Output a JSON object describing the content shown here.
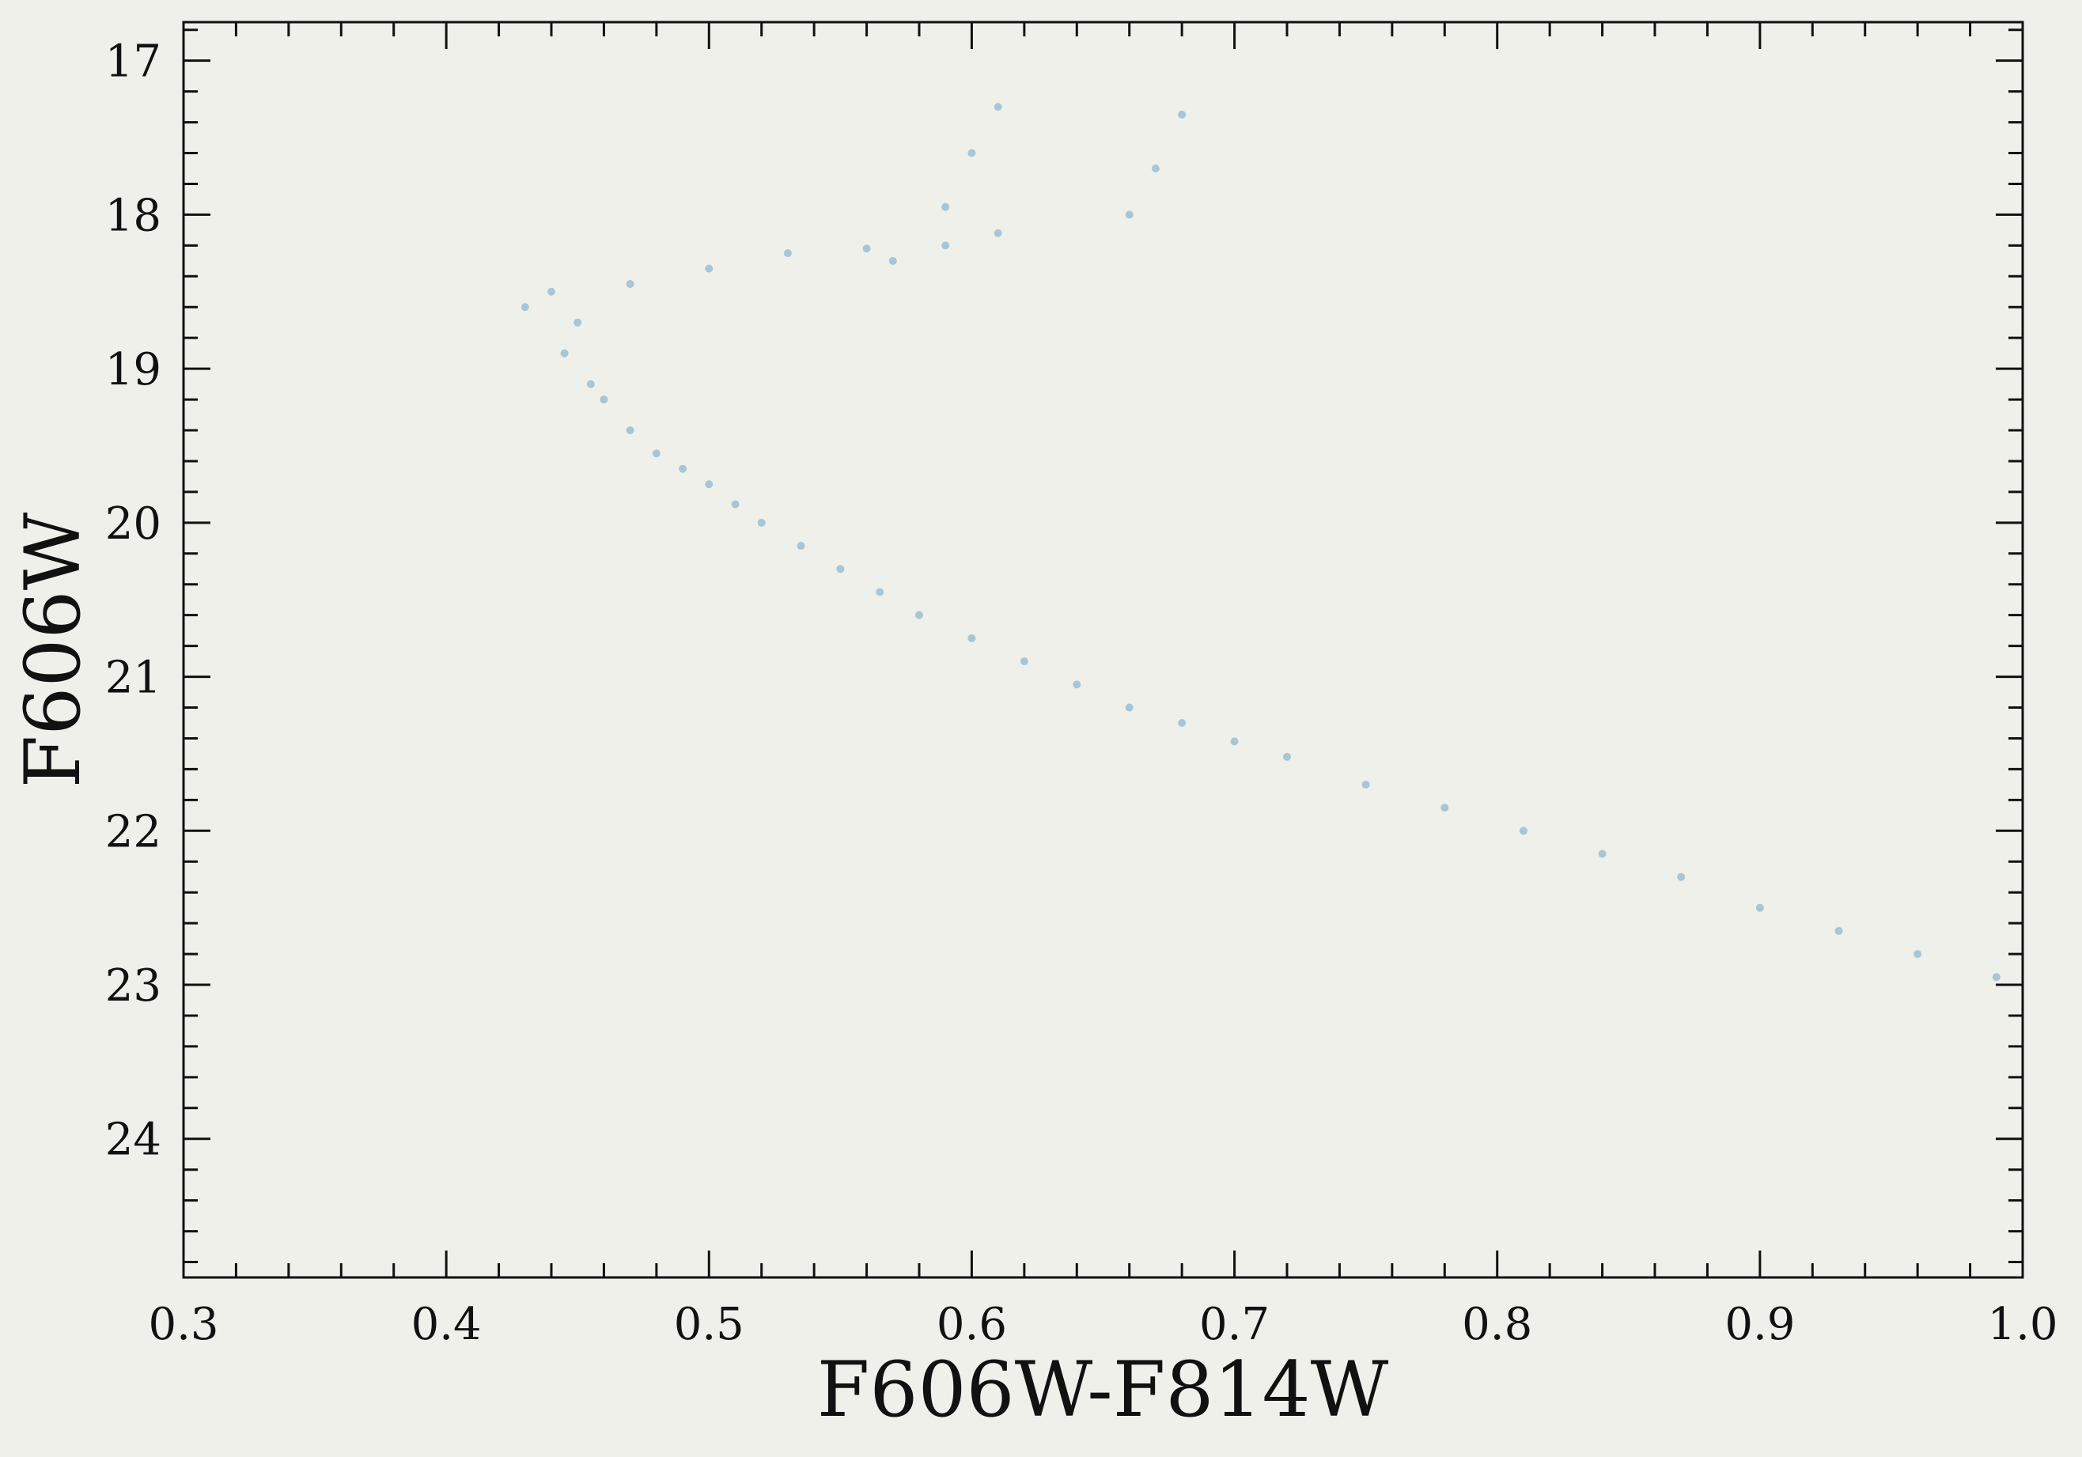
{
  "chart_data": {
    "type": "scatter",
    "title": "",
    "xlabel": "F606W-F814W",
    "ylabel": "F606W",
    "xlim": [
      0.3,
      1.0
    ],
    "ylim": [
      24.9,
      16.75
    ],
    "y_inverted": true,
    "grid": false,
    "legend": "none",
    "point_color": "#1f77b4",
    "background": "#f0f0eb",
    "x_ticks": [
      0.3,
      0.4,
      0.5,
      0.6,
      0.7,
      0.8,
      0.9,
      1.0
    ],
    "x_tick_labels": [
      "0.3",
      "0.4",
      "0.5",
      "0.6",
      "0.7",
      "0.8",
      "0.9",
      "1.0"
    ],
    "y_ticks": [
      17,
      18,
      19,
      20,
      21,
      22,
      23,
      24
    ],
    "y_tick_labels": [
      "17",
      "18",
      "19",
      "20",
      "21",
      "22",
      "23",
      "24"
    ],
    "series": [
      {
        "points": [
          [
            0.45,
            18.7
          ],
          [
            0.445,
            18.9
          ],
          [
            0.455,
            19.1
          ],
          [
            0.46,
            19.2
          ],
          [
            0.47,
            19.4
          ],
          [
            0.48,
            19.55
          ],
          [
            0.49,
            19.65
          ],
          [
            0.5,
            19.75
          ],
          [
            0.51,
            19.88
          ],
          [
            0.52,
            20.0
          ],
          [
            0.535,
            20.15
          ],
          [
            0.55,
            20.3
          ],
          [
            0.565,
            20.45
          ],
          [
            0.58,
            20.6
          ],
          [
            0.6,
            20.75
          ],
          [
            0.62,
            20.9
          ],
          [
            0.64,
            21.05
          ],
          [
            0.66,
            21.2
          ],
          [
            0.68,
            21.3
          ],
          [
            0.7,
            21.42
          ],
          [
            0.72,
            21.52
          ],
          [
            0.75,
            21.7
          ],
          [
            0.78,
            21.85
          ],
          [
            0.81,
            22.0
          ],
          [
            0.84,
            22.15
          ],
          [
            0.87,
            22.3
          ],
          [
            0.9,
            22.5
          ],
          [
            0.93,
            22.65
          ],
          [
            0.96,
            22.8
          ],
          [
            0.99,
            22.95
          ],
          [
            0.43,
            18.6
          ],
          [
            0.44,
            18.5
          ],
          [
            0.47,
            18.45
          ],
          [
            0.5,
            18.35
          ],
          [
            0.53,
            18.25
          ],
          [
            0.56,
            18.22
          ],
          [
            0.59,
            18.2
          ],
          [
            0.61,
            18.12
          ],
          [
            0.66,
            18.0
          ],
          [
            0.67,
            17.7
          ],
          [
            0.68,
            17.35
          ],
          [
            0.59,
            17.95
          ],
          [
            0.6,
            17.6
          ],
          [
            0.61,
            17.3
          ],
          [
            0.57,
            18.3
          ]
        ]
      }
    ]
  }
}
